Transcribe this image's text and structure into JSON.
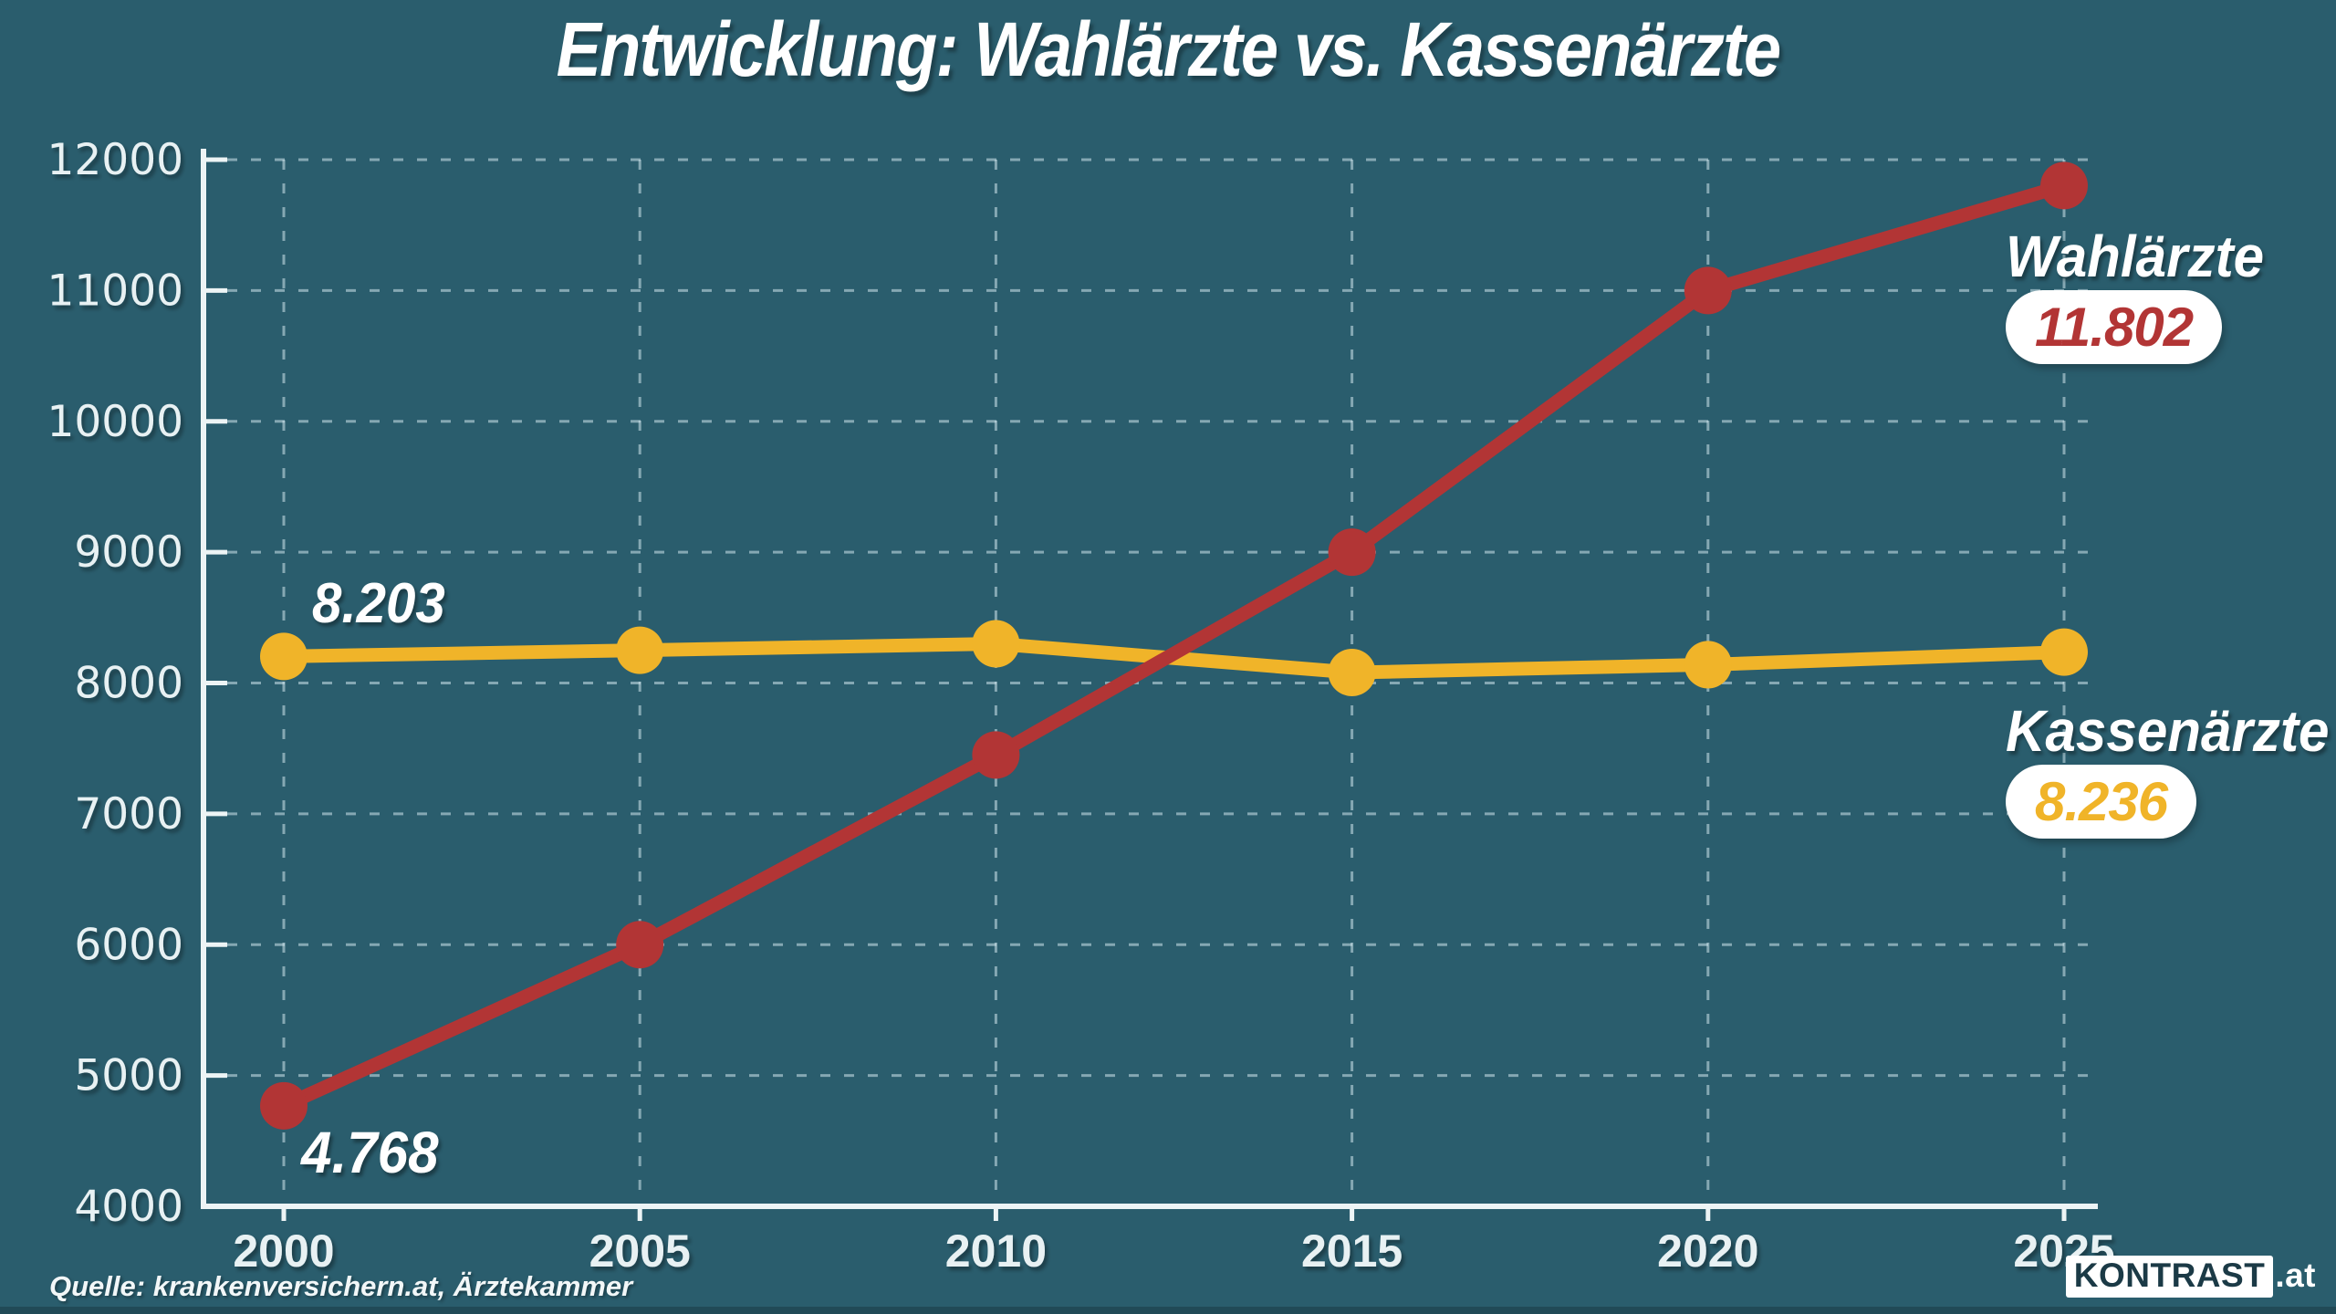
{
  "title": "Entwicklung: Wahlärzte vs. Kassenärzte",
  "chart_data": {
    "type": "line",
    "title": "Entwicklung: Wahlärzte vs. Kassenärzte",
    "x": [
      "2000",
      "2005",
      "2010",
      "2015",
      "2020",
      "2025"
    ],
    "series": [
      {
        "name": "Kassenärzte",
        "color": "#f0b429",
        "values": [
          8203,
          8250,
          8300,
          8080,
          8140,
          8236
        ],
        "start_label": "8.203",
        "end_label": "8.236"
      },
      {
        "name": "Wahlärzte",
        "color": "#b23535",
        "values": [
          4768,
          6000,
          7450,
          9000,
          11000,
          11802
        ],
        "start_label": "4.768",
        "end_label": "11.802"
      }
    ],
    "ylim": [
      4000,
      12000
    ],
    "yticks": [
      4000,
      5000,
      6000,
      7000,
      8000,
      9000,
      10000,
      11000,
      12000
    ],
    "xlabel": "",
    "ylabel": "",
    "grid": "dashed horizontal and vertical gridlines",
    "legend_position": "labels at right end of lines"
  },
  "annotations": {
    "kassen_start_value": "8.203",
    "wahl_start_value": "4.768",
    "wahl_label": "Wahlärzte",
    "wahl_end_value": "11.802",
    "kassen_label": "Kassenärzte",
    "kassen_end_value": "8.236"
  },
  "footer": {
    "source": "Quelle: krankenversichern.at, Ärztekammer",
    "logo_text": "KONTRAST",
    "logo_suffix": ".at"
  },
  "colors": {
    "background": "#2a5d6d",
    "wahlaerzte_red": "#b23535",
    "kassenaerzte_yellow": "#f0b429",
    "axis": "#edf4f5",
    "grid": "#cfe5ec",
    "tick_label": "#e8f1f3",
    "badge_background": "#ffffff",
    "logo_text_color": "#1b3a46"
  }
}
